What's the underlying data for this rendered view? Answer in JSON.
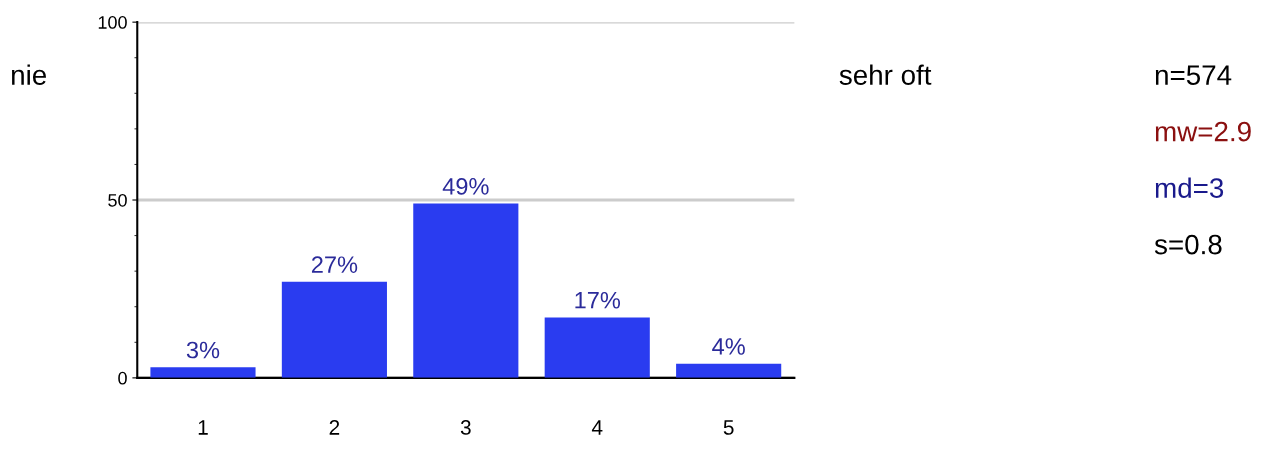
{
  "chart_data": {
    "type": "bar",
    "categories": [
      "1",
      "2",
      "3",
      "4",
      "5"
    ],
    "values": [
      3,
      27,
      49,
      17,
      4
    ],
    "value_labels": [
      "3%",
      "27%",
      "49%",
      "17%",
      "4%"
    ],
    "color": "#2a3cf0",
    "ylim": [
      0,
      100
    ],
    "yticks": [
      0,
      50,
      100
    ],
    "grid": "y",
    "annotations": [
      "nie",
      "sehr oft",
      "n=574",
      "mw=2.9",
      "md=3",
      "s=0.8"
    ]
  }
}
